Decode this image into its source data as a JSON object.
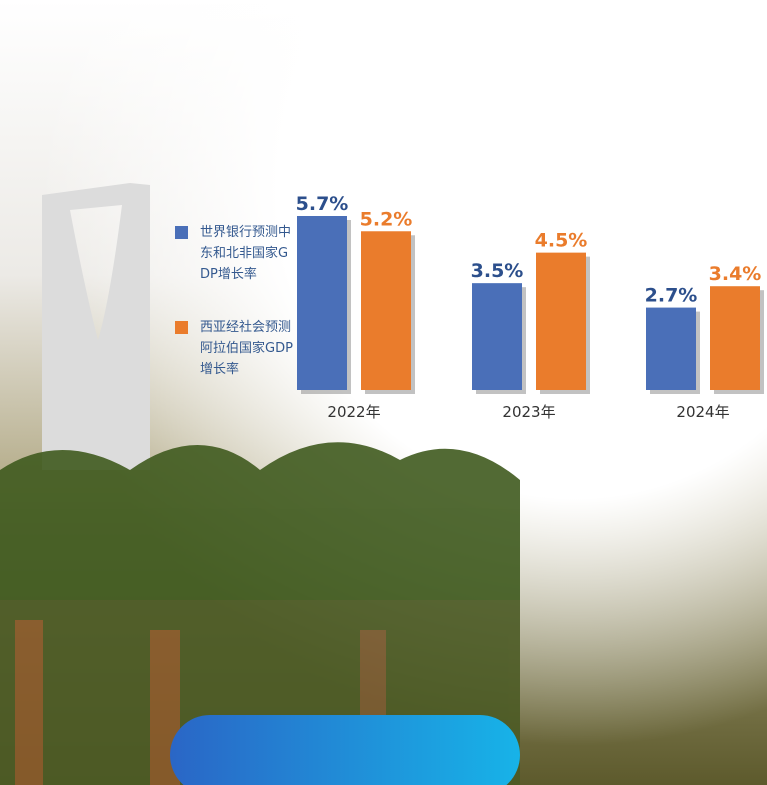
{
  "chart_data": {
    "type": "bar",
    "categories": [
      "2022年",
      "2023年",
      "2024年"
    ],
    "series": [
      {
        "name": "世界银行预测中东和北非国家GDP增长率",
        "color": "#4a6fb8",
        "values": [
          5.7,
          3.5,
          2.7
        ],
        "value_labels": [
          "5.7%",
          "3.5%",
          "2.7%"
        ]
      },
      {
        "name": "西亚经社会预测阿拉伯国家GDP增长率",
        "color": "#ea7c2c",
        "values": [
          5.2,
          4.5,
          3.4
        ],
        "value_labels": [
          "5.2%",
          "4.5%",
          "3.4%"
        ]
      }
    ]
  }
}
